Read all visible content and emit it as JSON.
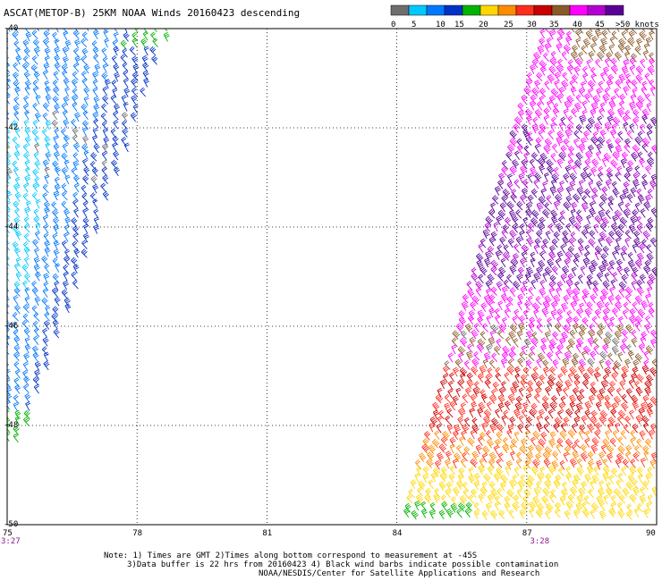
{
  "title": "ASCAT(METOP-B) 25KM NOAA Winds 20160423 descending",
  "legend": {
    "labels": [
      "0",
      "5",
      "10",
      "15",
      "20",
      "25",
      "30",
      "35",
      "40",
      "45",
      ">50 knots"
    ],
    "colors": [
      "#6e6e6e",
      "#00c8ff",
      "#0078ff",
      "#0032c8",
      "#00b400",
      "#ffd700",
      "#ff8c00",
      "#ff2d1e",
      "#c80000",
      "#8b5a2b",
      "#ff00ff",
      "#b400d2",
      "#5a0096"
    ]
  },
  "map": {
    "lon_ticks": [
      "75",
      "78",
      "81",
      "84",
      "87",
      "90"
    ],
    "lat_ticks": [
      "-40",
      "-42",
      "-44",
      "-46",
      "-48",
      "-50"
    ],
    "lon_range": [
      75,
      90
    ],
    "lat_range": [
      -50,
      -40
    ],
    "grid": "dotted",
    "pass_times": [
      {
        "label": "3:27",
        "lon": 75
      },
      {
        "label": "3:28",
        "lon": 87.2
      }
    ],
    "swaths": [
      {
        "name": "west",
        "edge_lon_at_top": 78.8,
        "edge_lon_at_bottom": 75.0,
        "side": "left",
        "dominant_colors": [
          "#0078ff",
          "#00c8ff",
          "#0032c8"
        ]
      },
      {
        "name": "east",
        "edge_lon_at_top": 87.5,
        "edge_lon_at_bottom": 84.2,
        "side": "right",
        "dominant_colors": [
          "#ff00ff",
          "#5a0096",
          "#ff2d1e",
          "#ff8c00",
          "#ffd700"
        ]
      }
    ]
  },
  "notes": {
    "line1": "Note: 1) Times are GMT 2)Times along bottom correspond to measurement at -45S",
    "line2": "3)Data buffer is 22 hrs from 20160423 4) Black wind barbs indicate possible contamination",
    "line3": "NOAA/NESDIS/Center for Satellite Applications and Research"
  }
}
